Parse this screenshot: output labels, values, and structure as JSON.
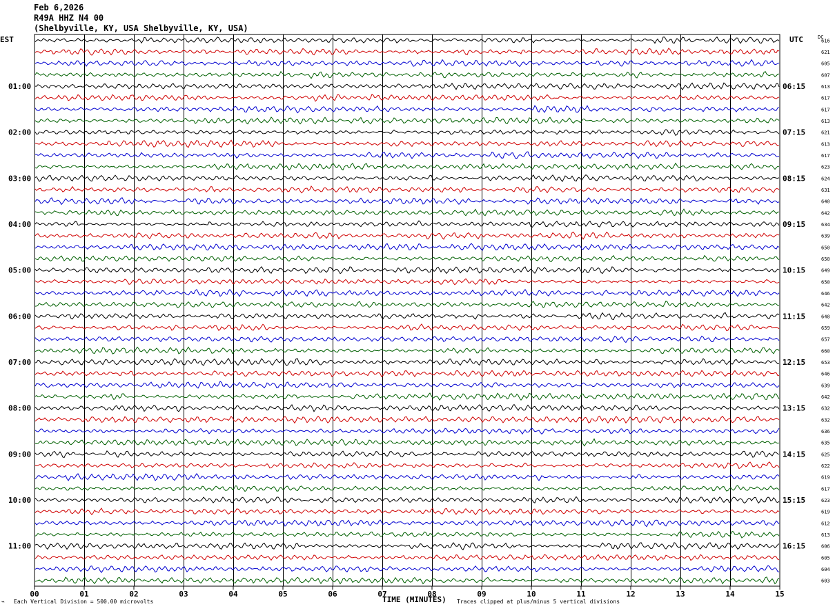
{
  "header": {
    "date": "Feb 6,2026",
    "station": "R49A HHZ N4 00",
    "location": "(Shelbyville, KY, USA Shelbyville, KY, USA)"
  },
  "labels": {
    "left_tz": "EST",
    "right_tz": "UTC",
    "dc": "DC",
    "x_title": "TIME (MINUTES)",
    "scale_note": "Each Vertical Division =  500.00 microvolts",
    "clip_note": "Traces clipped at plus/minus 5 vertical divisions"
  },
  "colors": {
    "trace_cycle": [
      "#000000",
      "#d00000",
      "#0000d0",
      "#006000"
    ],
    "grid": "#000000",
    "background": "#ffffff"
  },
  "chart_data": {
    "type": "line",
    "title": "R49A HHZ N4 00",
    "xlabel": "TIME (MINUTES)",
    "xlim": [
      0,
      15
    ],
    "x_ticks": [
      "00",
      "01",
      "02",
      "03",
      "04",
      "05",
      "06",
      "07",
      "08",
      "09",
      "10",
      "11",
      "12",
      "13",
      "14",
      "15"
    ],
    "rows_per_hour": 4,
    "left_hour_labels": [
      "01:00",
      "02:00",
      "03:00",
      "04:00",
      "05:00",
      "06:00",
      "07:00",
      "08:00",
      "09:00",
      "10:00",
      "11:00"
    ],
    "right_hour_labels": [
      "06:15",
      "07:15",
      "08:15",
      "09:15",
      "10:15",
      "11:15",
      "12:15",
      "13:15",
      "14:15",
      "15:15",
      "16:15"
    ],
    "dc_offsets": [
      616,
      621,
      605,
      607,
      613,
      617,
      617,
      613,
      621,
      613,
      617,
      623,
      624,
      631,
      640,
      642,
      634,
      639,
      650,
      650,
      649,
      650,
      646,
      642,
      648,
      659,
      657,
      660,
      653,
      646,
      639,
      642,
      632,
      632,
      636,
      635,
      625,
      622,
      619,
      617,
      623,
      619,
      612,
      613,
      606,
      605,
      604,
      603
    ],
    "grid": true
  }
}
